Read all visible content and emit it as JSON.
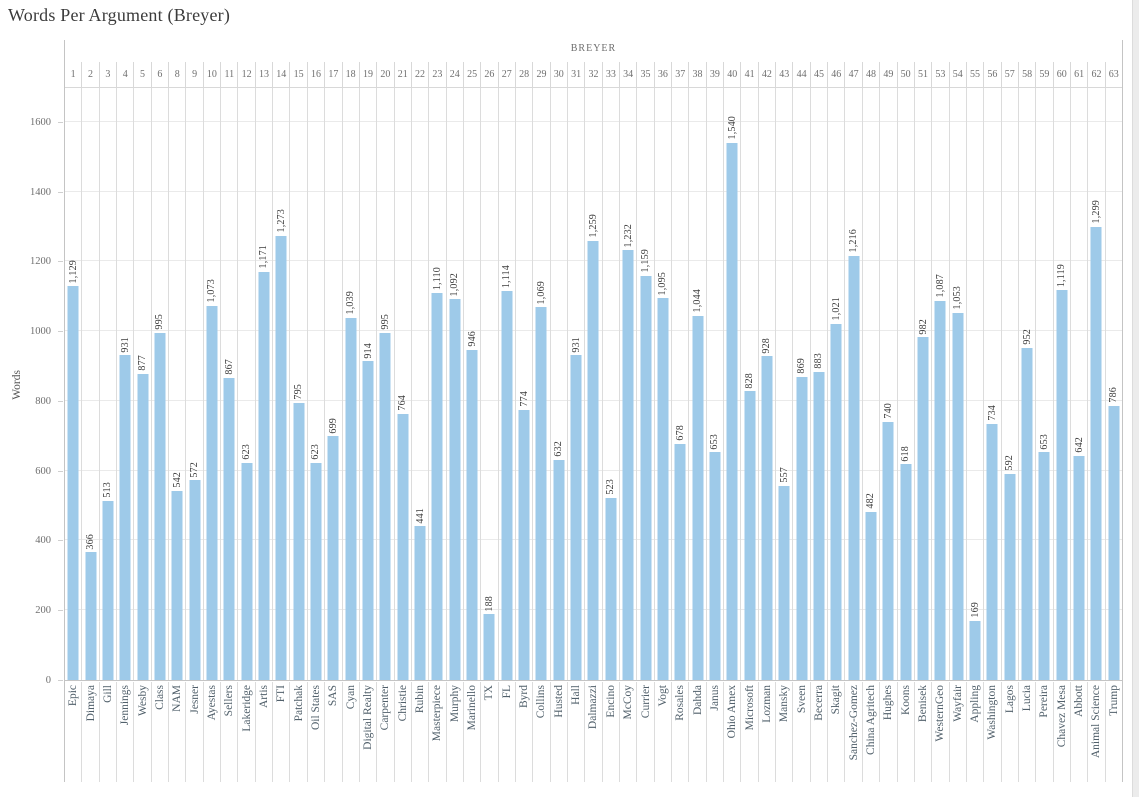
{
  "title": "Words Per Argument (Breyer)",
  "column_header": "BREYER",
  "y_axis": {
    "label": "Words",
    "ticks": [
      0,
      200,
      400,
      600,
      800,
      1000,
      1200,
      1400,
      1600
    ]
  },
  "colors": {
    "bar": "#9ecae9",
    "gridline": "#eaeaea",
    "column_divider": "#dcdcdc",
    "axis_line": "#c4c4c4",
    "title_text": "#3b3b3b",
    "header_text": "#6e6e6e",
    "tick_text": "#6f6f6f",
    "value_text": "#3d3d3d",
    "x_label_text": "#51606b"
  },
  "chart_data": {
    "type": "bar",
    "title": "Words Per Argument (Breyer)",
    "xlabel": "BREYER",
    "ylabel": "Words",
    "ylim": [
      0,
      1700
    ],
    "grid": true,
    "legend_position": "none",
    "columns": [
      {
        "index": 1,
        "label": "Epic",
        "value": 1129
      },
      {
        "index": 2,
        "label": "Dimaya",
        "value": 366
      },
      {
        "index": 3,
        "label": "Gill",
        "value": 513
      },
      {
        "index": 4,
        "label": "Jennings",
        "value": 931
      },
      {
        "index": 5,
        "label": "Wesby",
        "value": 877
      },
      {
        "index": 6,
        "label": "Class",
        "value": 995
      },
      {
        "index": 8,
        "label": "NAM",
        "value": 542
      },
      {
        "index": 9,
        "label": "Jesner",
        "value": 572
      },
      {
        "index": 10,
        "label": "Ayestas",
        "value": 1073
      },
      {
        "index": 11,
        "label": "Sellers",
        "value": 867
      },
      {
        "index": 12,
        "label": "Lakeridge",
        "value": 623
      },
      {
        "index": 13,
        "label": "Artis",
        "value": 1171
      },
      {
        "index": 14,
        "label": "FTI",
        "value": 1273
      },
      {
        "index": 15,
        "label": "Patchak",
        "value": 795
      },
      {
        "index": 16,
        "label": "Oil States",
        "value": 623
      },
      {
        "index": 17,
        "label": "SAS",
        "value": 699
      },
      {
        "index": 18,
        "label": "Cyan",
        "value": 1039
      },
      {
        "index": 19,
        "label": "Digital Realty",
        "value": 914
      },
      {
        "index": 20,
        "label": "Carpenter",
        "value": 995
      },
      {
        "index": 21,
        "label": "Christie",
        "value": 764
      },
      {
        "index": 22,
        "label": "Rubin",
        "value": 441
      },
      {
        "index": 23,
        "label": "Masterpiece",
        "value": 1110
      },
      {
        "index": 24,
        "label": "Murphy",
        "value": 1092
      },
      {
        "index": 25,
        "label": "Marinello",
        "value": 946
      },
      {
        "index": 26,
        "label": "TX",
        "value": 188
      },
      {
        "index": 27,
        "label": "FL",
        "value": 1114
      },
      {
        "index": 28,
        "label": "Byrd",
        "value": 774
      },
      {
        "index": 29,
        "label": "Collins",
        "value": 1069
      },
      {
        "index": 30,
        "label": "Husted",
        "value": 632
      },
      {
        "index": 31,
        "label": "Hall",
        "value": 931
      },
      {
        "index": 32,
        "label": "Dalmazzi",
        "value": 1259
      },
      {
        "index": 33,
        "label": "Encino",
        "value": 523
      },
      {
        "index": 34,
        "label": "McCoy",
        "value": 1232
      },
      {
        "index": 35,
        "label": "Currier",
        "value": 1159
      },
      {
        "index": 36,
        "label": "Vogt",
        "value": 1095
      },
      {
        "index": 37,
        "label": "Rosales",
        "value": 678
      },
      {
        "index": 38,
        "label": "Dahda",
        "value": 1044
      },
      {
        "index": 39,
        "label": "Janus",
        "value": 653
      },
      {
        "index": 40,
        "label": "Ohio Amex",
        "value": 1540
      },
      {
        "index": 41,
        "label": "Microsoft",
        "value": 828
      },
      {
        "index": 42,
        "label": "Lozman",
        "value": 928
      },
      {
        "index": 43,
        "label": "Mansky",
        "value": 557
      },
      {
        "index": 44,
        "label": "Sveen",
        "value": 869
      },
      {
        "index": 45,
        "label": "Becerra",
        "value": 883
      },
      {
        "index": 46,
        "label": "Skagit",
        "value": 1021
      },
      {
        "index": 47,
        "label": "Sanchez-Gomez",
        "value": 1216
      },
      {
        "index": 48,
        "label": "China Agritech",
        "value": 482
      },
      {
        "index": 49,
        "label": "Hughes",
        "value": 740
      },
      {
        "index": 50,
        "label": "Koons",
        "value": 618
      },
      {
        "index": 51,
        "label": "Benisek",
        "value": 982
      },
      {
        "index": 53,
        "label": "WesternGeo",
        "value": 1087
      },
      {
        "index": 54,
        "label": "Wayfair",
        "value": 1053
      },
      {
        "index": 55,
        "label": "Appling",
        "value": 169
      },
      {
        "index": 56,
        "label": "Washington",
        "value": 734
      },
      {
        "index": 57,
        "label": "Lagos",
        "value": 592
      },
      {
        "index": 58,
        "label": "Lucia",
        "value": 952
      },
      {
        "index": 59,
        "label": "Pereira",
        "value": 653
      },
      {
        "index": 60,
        "label": "Chavez Mesa",
        "value": 1119
      },
      {
        "index": 61,
        "label": "Abbott",
        "value": 642
      },
      {
        "index": 62,
        "label": "Animal Science",
        "value": 1299
      },
      {
        "index": 63,
        "label": "Trump",
        "value": 786
      }
    ]
  }
}
